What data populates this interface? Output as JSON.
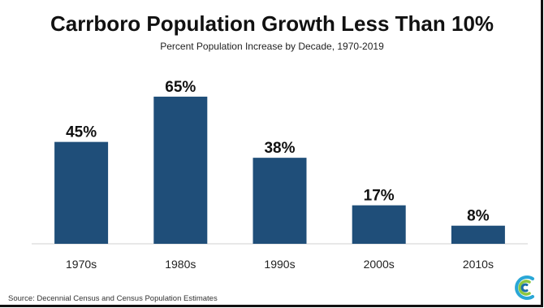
{
  "header": {
    "title": "Carrboro Population Growth Less Than 10%",
    "subtitle": "Percent Population Increase by Decade, 1970-2019"
  },
  "footer": {
    "source": "Source: Decennial Census and Census Population Estimates"
  },
  "logo": {
    "icon": "concentric-c-logo-icon"
  },
  "colors": {
    "bar": "#1f4e79",
    "logo_outer": "#2aa7d6",
    "logo_middle": "#8cc63f",
    "logo_inner": "#1b6fa8"
  },
  "chart_data": {
    "type": "bar",
    "title": "Carrboro Population Growth Less Than 10%",
    "subtitle": "Percent Population Increase by Decade, 1970-2019",
    "categories": [
      "1970s",
      "1980s",
      "1990s",
      "2000s",
      "2010s"
    ],
    "values": [
      45,
      65,
      38,
      17,
      8
    ],
    "data_labels": [
      "45%",
      "65%",
      "38%",
      "17%",
      "8%"
    ],
    "xlabel": "",
    "ylabel": "",
    "ylim": [
      0,
      70
    ],
    "grid": false,
    "legend": "none"
  }
}
